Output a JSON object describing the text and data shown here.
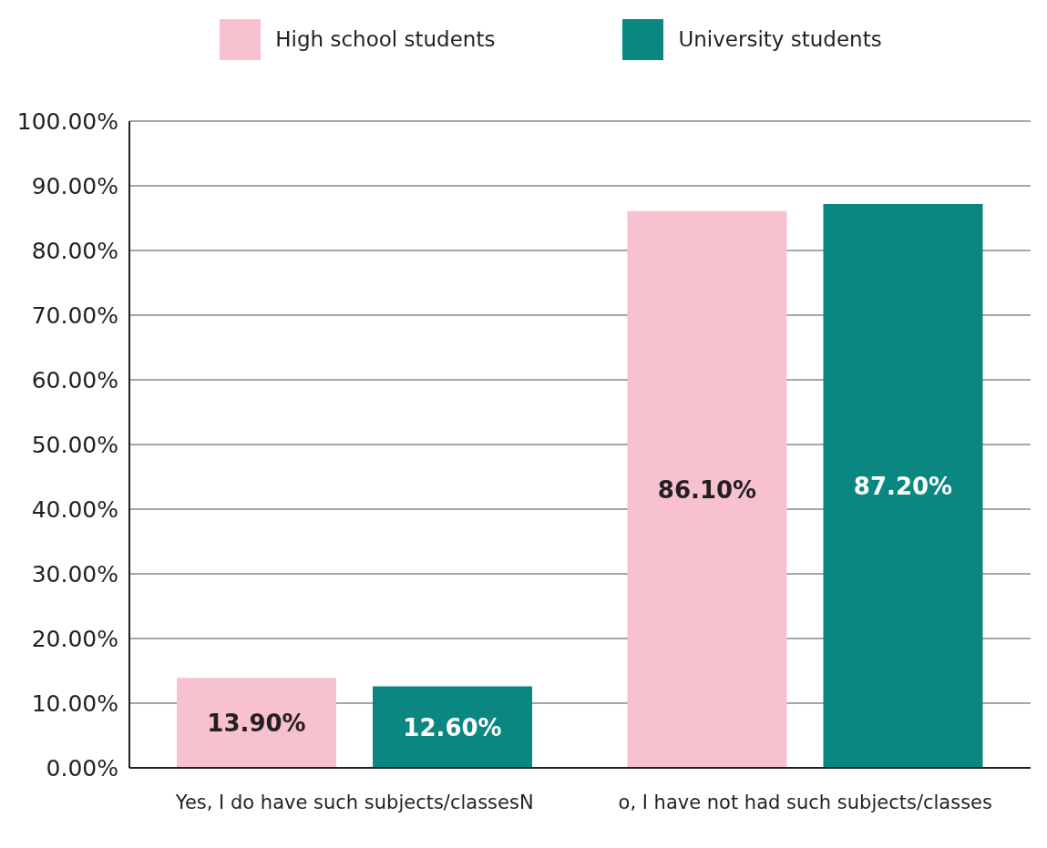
{
  "chart_data": {
    "type": "bar",
    "categories": [
      "Yes, I do have such subjects/classesN",
      "o, I have not had such subjects/classes"
    ],
    "series": [
      {
        "name": "High school students",
        "color": "#f7c1cf",
        "values": [
          13.9,
          86.1
        ],
        "value_labels": [
          "13.90%",
          "86.10%"
        ]
      },
      {
        "name": "University students",
        "color": "#0a8780",
        "values": [
          12.6,
          87.2
        ],
        "value_labels": [
          "12.60%",
          "87.20%"
        ]
      }
    ],
    "ylim": [
      0,
      100
    ],
    "yticks": [
      {
        "value": 0,
        "label": "0.00%"
      },
      {
        "value": 10,
        "label": "10.00%"
      },
      {
        "value": 20,
        "label": "20.00%"
      },
      {
        "value": 30,
        "label": "30.00%"
      },
      {
        "value": 40,
        "label": "40.00%"
      },
      {
        "value": 50,
        "label": "50.00%"
      },
      {
        "value": 60,
        "label": "60.00%"
      },
      {
        "value": 70,
        "label": "70.00%"
      },
      {
        "value": 80,
        "label": "80.00%"
      },
      {
        "value": 90,
        "label": "90.00%"
      },
      {
        "value": 100,
        "label": "100.00%"
      }
    ],
    "grid": "y",
    "legend": "top"
  }
}
